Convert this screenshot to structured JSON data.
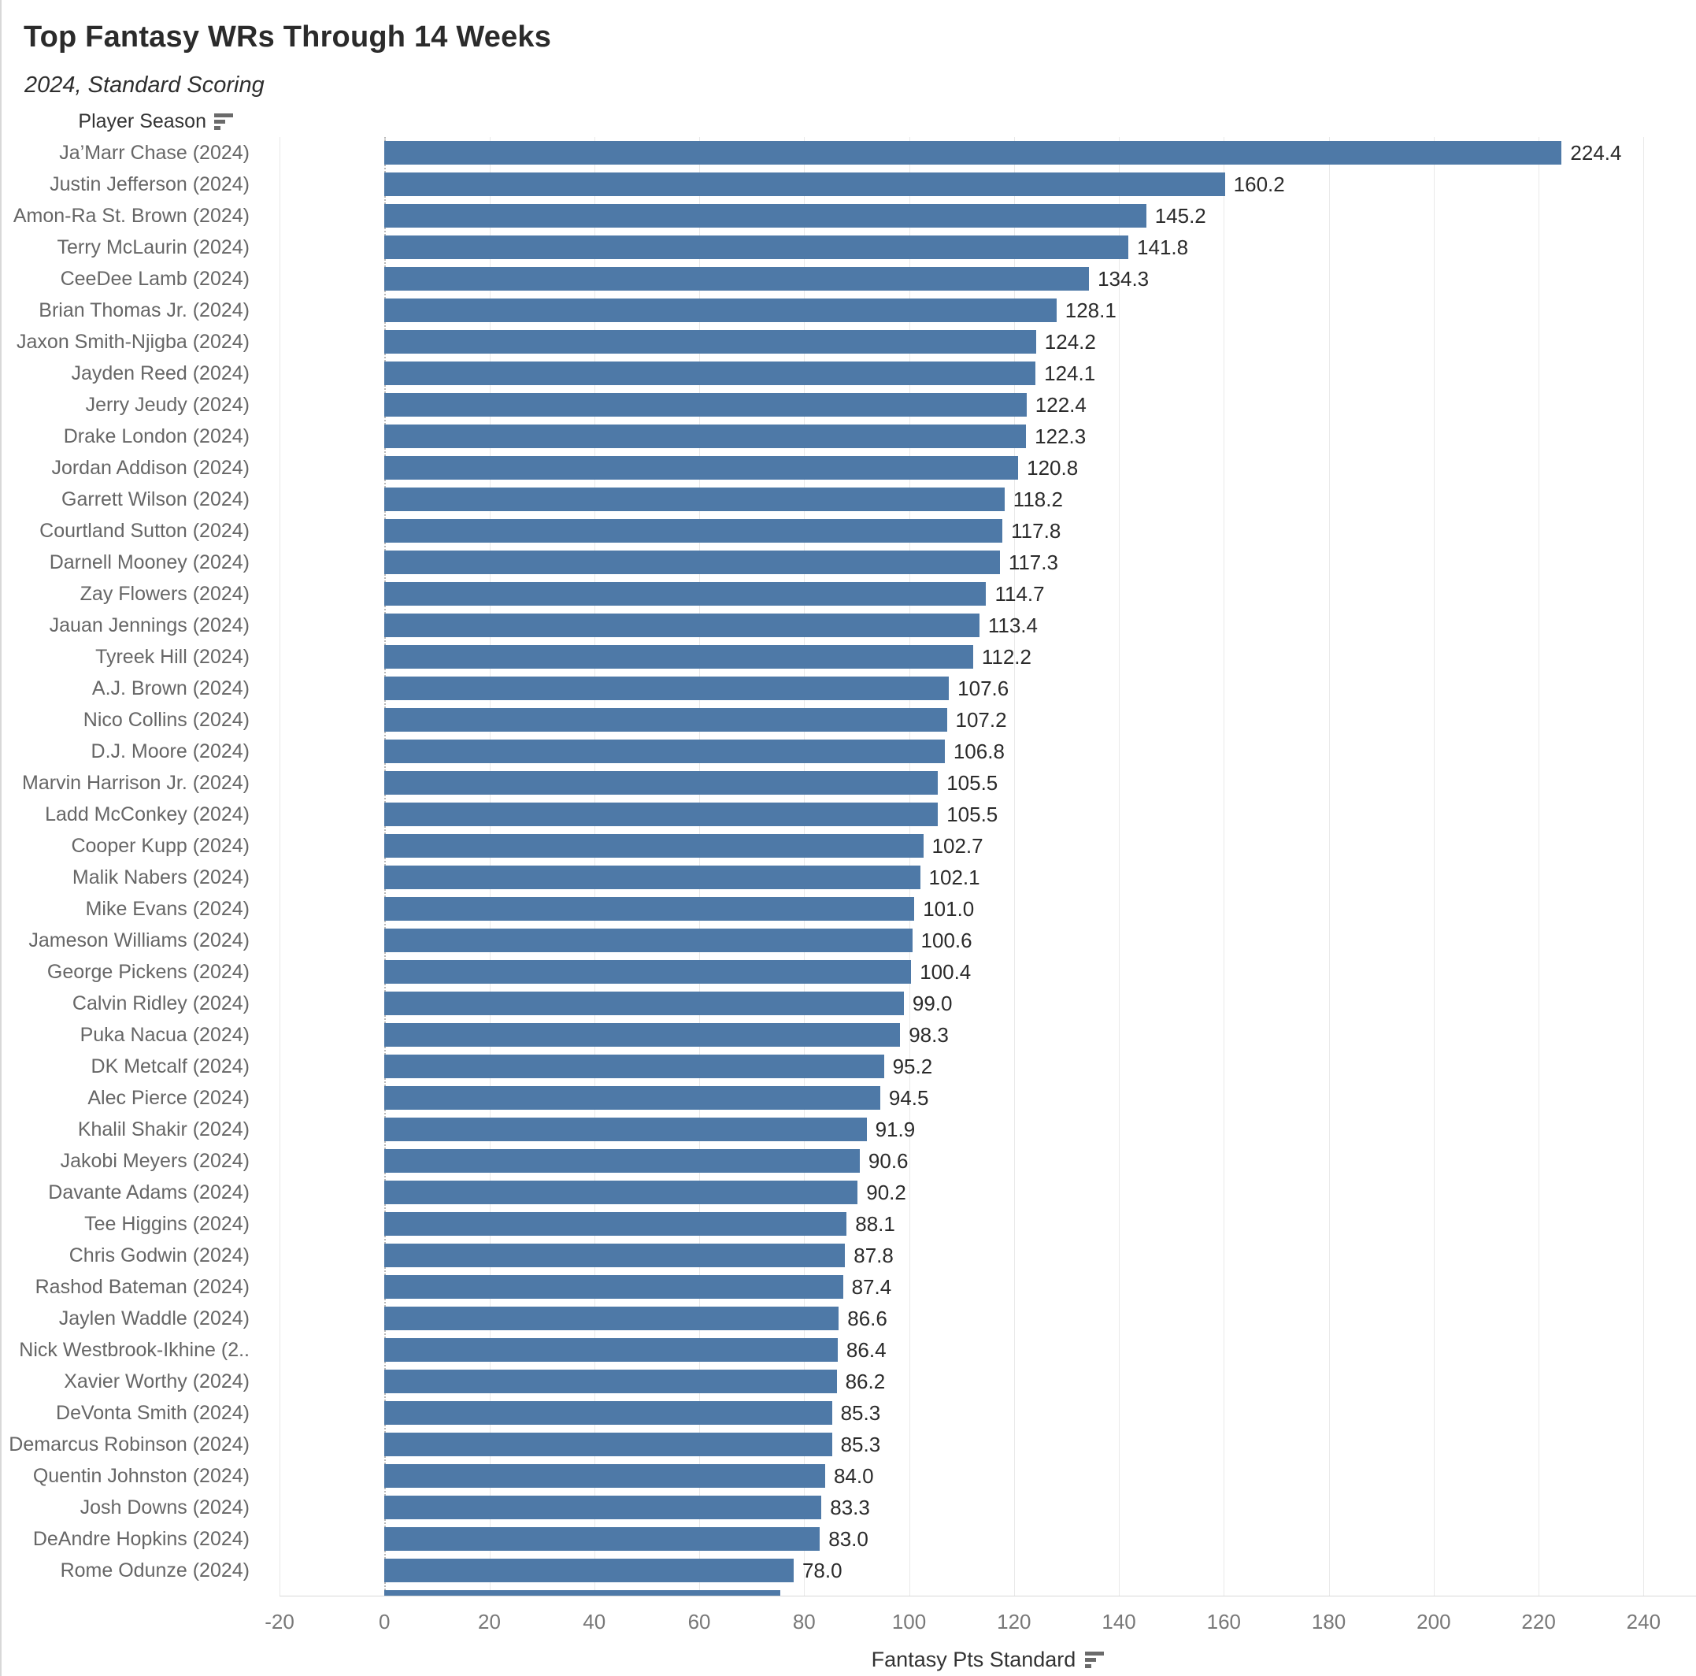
{
  "title": "Top Fantasy WRs Through 14 Weeks",
  "subtitle": "2024, Standard Scoring",
  "row_header": {
    "label": "Player Season"
  },
  "axis_title": {
    "label": "Fantasy Pts Standard"
  },
  "colors": {
    "bar": "#4e79a7",
    "gridline": "#e9e9e9",
    "zero_line": "#b8b8b8",
    "value_label": "#2b2b2b",
    "category_label": "#666666",
    "tick_label": "#787878"
  },
  "chart_data": {
    "type": "bar",
    "orientation": "horizontal",
    "title": "Top Fantasy WRs Through 14 Weeks",
    "subtitle": "2024, Standard Scoring",
    "xlabel": "Fantasy Pts Standard",
    "ylabel": "Player Season",
    "sort": "descending",
    "grid": "vertical",
    "value_labels": true,
    "xlim": [
      -20,
      250
    ],
    "xticks": [
      -20,
      0,
      20,
      40,
      60,
      80,
      100,
      120,
      140,
      160,
      180,
      200,
      220,
      240
    ],
    "categories": [
      "Ja’Marr Chase (2024)",
      "Justin Jefferson (2024)",
      "Amon-Ra St. Brown (2024)",
      "Terry McLaurin (2024)",
      "CeeDee Lamb (2024)",
      "Brian Thomas Jr. (2024)",
      "Jaxon Smith-Njigba (2024)",
      "Jayden Reed (2024)",
      "Jerry Jeudy (2024)",
      "Drake London (2024)",
      "Jordan Addison (2024)",
      "Garrett Wilson (2024)",
      "Courtland Sutton (2024)",
      "Darnell Mooney (2024)",
      "Zay Flowers (2024)",
      "Jauan Jennings (2024)",
      "Tyreek Hill (2024)",
      "A.J. Brown (2024)",
      "Nico Collins (2024)",
      "D.J. Moore (2024)",
      "Marvin Harrison Jr. (2024)",
      "Ladd McConkey (2024)",
      "Cooper Kupp (2024)",
      "Malik Nabers (2024)",
      "Mike Evans (2024)",
      "Jameson Williams (2024)",
      "George Pickens (2024)",
      "Calvin Ridley (2024)",
      "Puka Nacua (2024)",
      "DK Metcalf (2024)",
      "Alec Pierce (2024)",
      "Khalil Shakir (2024)",
      "Jakobi Meyers (2024)",
      "Davante Adams (2024)",
      "Tee Higgins (2024)",
      "Chris Godwin (2024)",
      "Rashod Bateman (2024)",
      "Jaylen Waddle (2024)",
      "Nick Westbrook-Ikhine (2..",
      "Xavier Worthy (2024)",
      "DeVonta Smith (2024)",
      "Demarcus Robinson (2024)",
      "Quentin Johnston (2024)",
      "Josh Downs (2024)",
      "DeAndre Hopkins (2024)",
      "Rome Odunze (2024)"
    ],
    "values": [
      224.4,
      160.2,
      145.2,
      141.8,
      134.3,
      128.1,
      124.2,
      124.1,
      122.4,
      122.3,
      120.8,
      118.2,
      117.8,
      117.3,
      114.7,
      113.4,
      112.2,
      107.6,
      107.2,
      106.8,
      105.5,
      105.5,
      102.7,
      102.1,
      101.0,
      100.6,
      100.4,
      99.0,
      98.3,
      95.2,
      94.5,
      91.9,
      90.6,
      90.2,
      88.1,
      87.8,
      87.4,
      86.6,
      86.4,
      86.2,
      85.3,
      85.3,
      84.0,
      83.3,
      83.0,
      78.0
    ],
    "clipped_last_bar": {
      "approx_value": 75.5,
      "label_visible": false
    }
  }
}
